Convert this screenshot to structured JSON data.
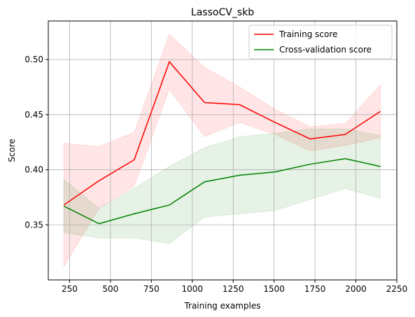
{
  "chart_data": {
    "type": "line",
    "title": "LassoCV_skb",
    "xlabel": "Training examples",
    "ylabel": "Score",
    "xlim": [
      120,
      2250
    ],
    "ylim": [
      0.3,
      0.535
    ],
    "xticks": [
      250,
      500,
      750,
      1000,
      1250,
      1500,
      1750,
      2000,
      2250
    ],
    "yticks": [
      0.35,
      0.4,
      0.45,
      0.5
    ],
    "ytick_labels": [
      "0.35",
      "0.40",
      "0.45",
      "0.50"
    ],
    "grid": true,
    "legend_position": "top-right",
    "x": [
      215,
      430,
      645,
      860,
      1075,
      1290,
      1505,
      1720,
      1935,
      2150
    ],
    "series": [
      {
        "name": "Training score",
        "color": "#ff0000",
        "band_color": "#ff0000",
        "values": [
          0.368,
          0.39,
          0.409,
          0.498,
          0.461,
          0.459,
          0.443,
          0.428,
          0.432,
          0.453
        ],
        "lower": [
          0.312,
          0.365,
          0.385,
          0.473,
          0.43,
          0.443,
          0.432,
          0.417,
          0.422,
          0.429
        ],
        "upper": [
          0.424,
          0.421,
          0.434,
          0.523,
          0.493,
          0.475,
          0.455,
          0.439,
          0.442,
          0.477
        ]
      },
      {
        "name": "Cross-validation score",
        "color": "#008000",
        "band_color": "#008000",
        "values": [
          0.367,
          0.351,
          0.36,
          0.368,
          0.389,
          0.395,
          0.398,
          0.405,
          0.41,
          0.403
        ],
        "lower": [
          0.343,
          0.338,
          0.338,
          0.333,
          0.357,
          0.36,
          0.363,
          0.373,
          0.383,
          0.374
        ],
        "upper": [
          0.391,
          0.365,
          0.383,
          0.403,
          0.42,
          0.43,
          0.433,
          0.437,
          0.437,
          0.431
        ]
      }
    ]
  }
}
